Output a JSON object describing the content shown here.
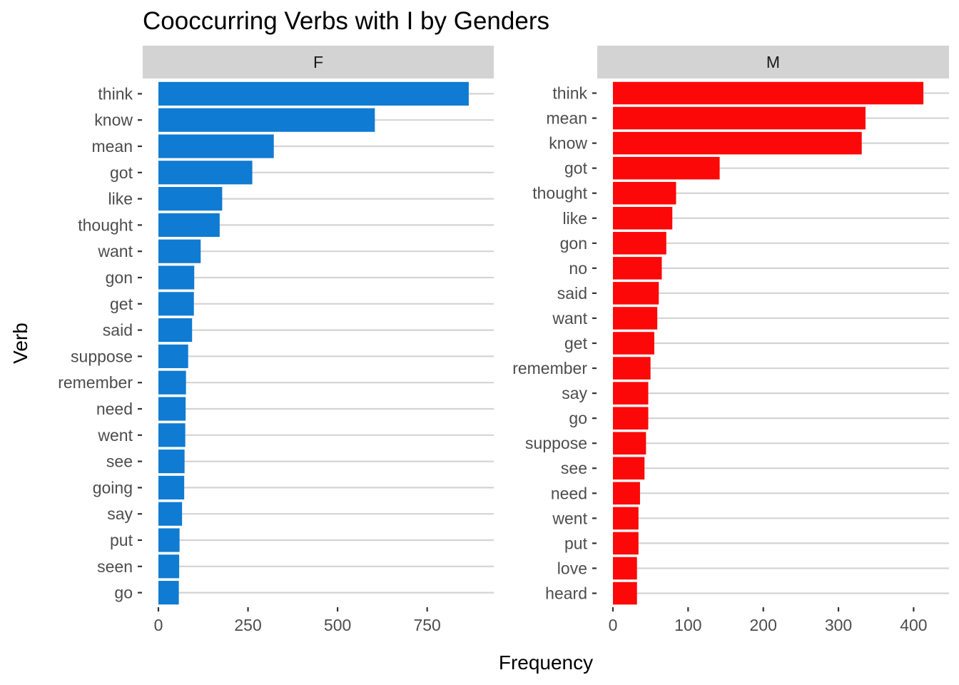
{
  "chart_data": {
    "type": "bar",
    "orientation": "horizontal",
    "title": "Cooccurring Verbs with I by Genders",
    "xlabel": "Frequency",
    "ylabel": "Verb",
    "grid": true,
    "panels": [
      {
        "name": "F",
        "color": "#0f7bd2",
        "xlim": [
          0,
          900
        ],
        "xticks": [
          0,
          250,
          500,
          750
        ],
        "categories": [
          "think",
          "know",
          "mean",
          "got",
          "like",
          "thought",
          "want",
          "gon",
          "get",
          "said",
          "suppose",
          "remember",
          "need",
          "went",
          "see",
          "going",
          "say",
          "put",
          "seen",
          "go"
        ],
        "values": [
          866,
          604,
          322,
          262,
          178,
          171,
          118,
          100,
          99,
          94,
          83,
          77,
          76,
          75,
          73,
          72,
          66,
          59,
          58,
          57
        ]
      },
      {
        "name": "M",
        "color": "#fc0808",
        "xlim": [
          0,
          430
        ],
        "xticks": [
          0,
          100,
          200,
          300,
          400
        ],
        "categories": [
          "think",
          "mean",
          "know",
          "got",
          "thought",
          "like",
          "gon",
          "no",
          "said",
          "want",
          "get",
          "remember",
          "say",
          "go",
          "suppose",
          "see",
          "need",
          "went",
          "put",
          "love",
          "heard"
        ],
        "values": [
          413,
          336,
          331,
          142,
          84,
          79,
          71,
          65,
          61,
          59,
          55,
          50,
          47,
          47,
          44,
          42,
          36,
          34,
          34,
          32,
          32
        ]
      }
    ]
  }
}
